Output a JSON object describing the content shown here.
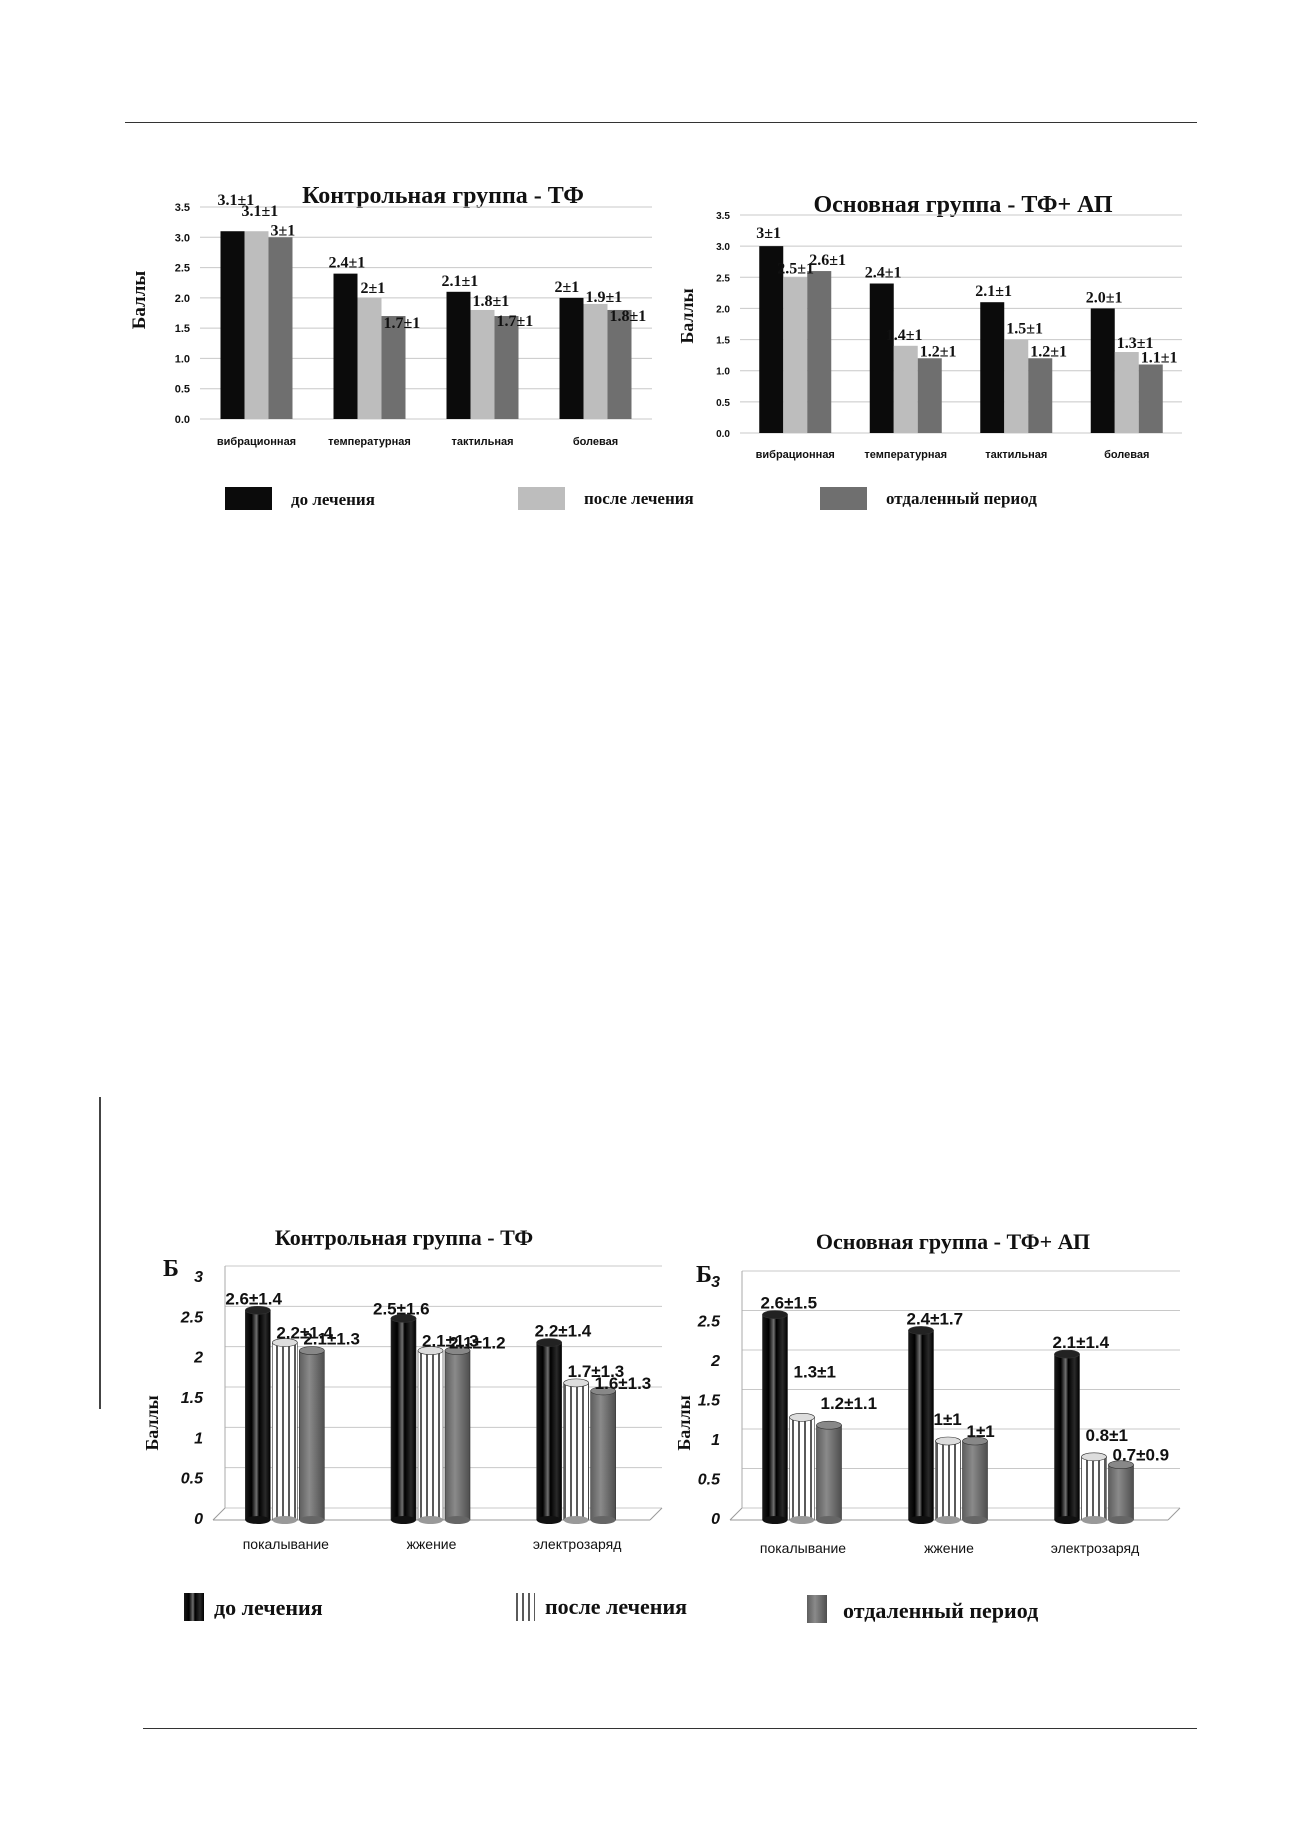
{
  "colors": {
    "series1": "#0b0b0b",
    "series2": "#bdbdbd",
    "series3": "#6f6f6f",
    "grid": "#c8c8c8"
  },
  "chart_data": [
    {
      "type": "bar",
      "title": "Контрольная группа - ТФ",
      "ylabel": "Баллы",
      "ylim": [
        0,
        3.5
      ],
      "yticks": [
        "0.0",
        "0.5",
        "1.0",
        "1.5",
        "2.0",
        "2.5",
        "3.0",
        "3.5"
      ],
      "categories": [
        "вибрационная",
        "температурная",
        "тактильная",
        "болевая"
      ],
      "series": [
        {
          "name": "до лечения",
          "values": [
            3.1,
            2.4,
            2.1,
            2.0
          ],
          "labels": [
            "3.1±1",
            "2.4±1",
            "2.1±1",
            "2±1"
          ]
        },
        {
          "name": "после лечения",
          "values": [
            3.1,
            2.0,
            1.8,
            1.9
          ],
          "labels": [
            "3.1±1",
            "2±1",
            "1.8±1",
            "1.9±1"
          ]
        },
        {
          "name": "отдаленный период",
          "values": [
            3.0,
            1.7,
            1.7,
            1.8
          ],
          "labels": [
            "3±1",
            "1.7±1",
            "1.7±1",
            "1.8±1"
          ]
        }
      ],
      "grid": true
    },
    {
      "type": "bar",
      "title": "Основная группа - ТФ+ АП",
      "ylabel": "Баллы",
      "ylim": [
        0,
        3.5
      ],
      "yticks": [
        "0.0",
        "0.5",
        "1.0",
        "1.5",
        "2.0",
        "2.5",
        "3.0",
        "3.5"
      ],
      "categories": [
        "вибрационная",
        "температурная",
        "тактильная",
        "болевая"
      ],
      "series": [
        {
          "name": "до лечения",
          "values": [
            3.0,
            2.4,
            2.1,
            2.0
          ],
          "labels": [
            "3±1",
            "2.4±1",
            "2.1±1",
            "2.0±1"
          ]
        },
        {
          "name": "после лечения",
          "values": [
            2.5,
            1.4,
            1.5,
            1.3
          ],
          "labels": [
            "2.5±1",
            "1.4±1",
            "1.5±1",
            "1.3±1"
          ]
        },
        {
          "name": "отдаленный период",
          "values": [
            2.6,
            1.2,
            1.2,
            1.1
          ],
          "labels": [
            "2.6±1",
            "1.2±1",
            "1.2±1",
            "1.1±1"
          ]
        }
      ],
      "grid": true
    },
    {
      "type": "bar",
      "title": "Контрольная группа - ТФ",
      "ylabel": "Баллы",
      "corner_label": "Б",
      "ylim": [
        0,
        3
      ],
      "yticks": [
        "0",
        "0.5",
        "1",
        "1.5",
        "2",
        "2.5",
        "3"
      ],
      "categories": [
        "покалывание",
        "жжение",
        "электрозаряд"
      ],
      "series": [
        {
          "name": "до лечения",
          "values": [
            2.6,
            2.5,
            2.2
          ],
          "labels": [
            "2.6±1.4",
            "2.5±1.6",
            "2.2±1.4"
          ]
        },
        {
          "name": "после лечения",
          "values": [
            2.2,
            2.1,
            1.7
          ],
          "labels": [
            "2.2±1.4",
            "2.1±1.3",
            "1.7±1.3"
          ]
        },
        {
          "name": "отдаленный период",
          "values": [
            2.1,
            2.1,
            1.6
          ],
          "labels": [
            "2.1±1.3",
            "2.1±1.2",
            "1.6±1.3"
          ]
        }
      ],
      "grid": true
    },
    {
      "type": "bar",
      "title": "Основная группа - ТФ+ АП",
      "ylabel": "Баллы",
      "corner_label": "Б",
      "ylim": [
        0,
        3
      ],
      "yticks": [
        "0",
        "0.5",
        "1",
        "1.5",
        "2",
        "2.5",
        "3"
      ],
      "categories": [
        "покалывание",
        "жжение",
        "электрозаряд"
      ],
      "series": [
        {
          "name": "до лечения",
          "values": [
            2.6,
            2.4,
            2.1
          ],
          "labels": [
            "2.6±1.5",
            "2.4±1.7",
            "2.1±1.4"
          ]
        },
        {
          "name": "после лечения",
          "values": [
            1.3,
            1.0,
            0.8
          ],
          "labels": [
            "1.3±1",
            "1±1",
            "0.8±1"
          ]
        },
        {
          "name": "отдаленный период",
          "values": [
            1.2,
            1.0,
            0.7
          ],
          "labels": [
            "1.2±1.1",
            "1±1",
            "0.7±0.9"
          ]
        }
      ],
      "grid": true
    }
  ],
  "legend_top": [
    "до лечения",
    "после лечения",
    "отдаленный период"
  ],
  "legend_bottom": [
    "до лечения",
    "после лечения",
    "отдаленный период"
  ]
}
